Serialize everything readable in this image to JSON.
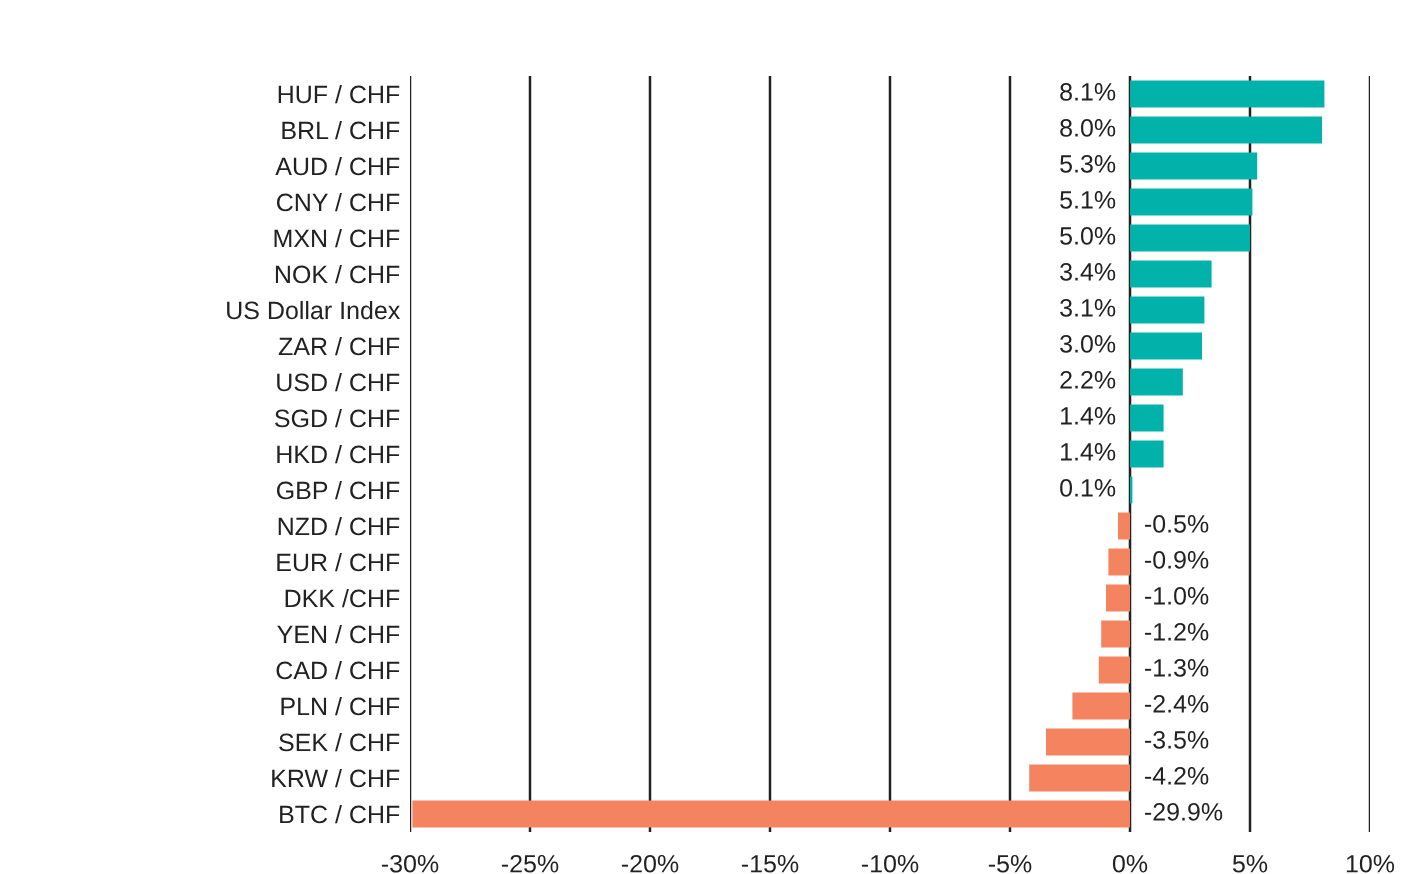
{
  "chart_data": {
    "type": "bar",
    "orientation": "horizontal",
    "categories": [
      "HUF / CHF",
      "BRL / CHF",
      "AUD / CHF",
      "CNY / CHF",
      "MXN / CHF",
      "NOK / CHF",
      "US Dollar Index",
      "ZAR / CHF",
      "USD / CHF",
      "SGD / CHF",
      "HKD / CHF",
      "GBP / CHF",
      "NZD / CHF",
      "EUR / CHF",
      "DKK /CHF",
      "YEN / CHF",
      "CAD / CHF",
      "PLN / CHF",
      "SEK / CHF",
      "KRW / CHF",
      "BTC / CHF"
    ],
    "values": [
      8.1,
      8.0,
      5.3,
      5.1,
      5.0,
      3.4,
      3.1,
      3.0,
      2.2,
      1.4,
      1.4,
      0.1,
      -0.5,
      -0.9,
      -1.0,
      -1.2,
      -1.3,
      -2.4,
      -3.5,
      -4.2,
      -29.9
    ],
    "colors": [
      "#00b2a9",
      "#00b2a9",
      "#00b2a9",
      "#00b2a9",
      "#00b2a9",
      "#00b2a9",
      "#00b2a9",
      "#00b2a9",
      "#00b2a9",
      "#00b2a9",
      "#00b2a9",
      "#00b2a9",
      "#f4845f",
      "#f4845f",
      "#f4845f",
      "#f4845f",
      "#f4845f",
      "#f4845f",
      "#f4845f",
      "#f4845f",
      "#f4845f"
    ],
    "value_labels": [
      "8.1%",
      "8.0%",
      "5.3%",
      "5.1%",
      "5.0%",
      "3.4%",
      "3.1%",
      "3.0%",
      "2.2%",
      "1.4%",
      "1.4%",
      "0.1%",
      "-0.5%",
      "-0.9%",
      "-1.0%",
      "-1.2%",
      "-1.3%",
      "-2.4%",
      "-3.5%",
      "-4.2%",
      "-29.9%"
    ],
    "xlim": [
      -30,
      10
    ],
    "xticks": [
      {
        "value": -30,
        "label": "-30%"
      },
      {
        "value": -25,
        "label": "-25%"
      },
      {
        "value": -20,
        "label": "-20%"
      },
      {
        "value": -15,
        "label": "-15%"
      },
      {
        "value": -10,
        "label": "-10%"
      },
      {
        "value": -5,
        "label": "-5%"
      },
      {
        "value": 0,
        "label": "0%"
      },
      {
        "value": 5,
        "label": "5%"
      },
      {
        "value": 10,
        "label": "10%"
      }
    ],
    "grid": "x"
  }
}
